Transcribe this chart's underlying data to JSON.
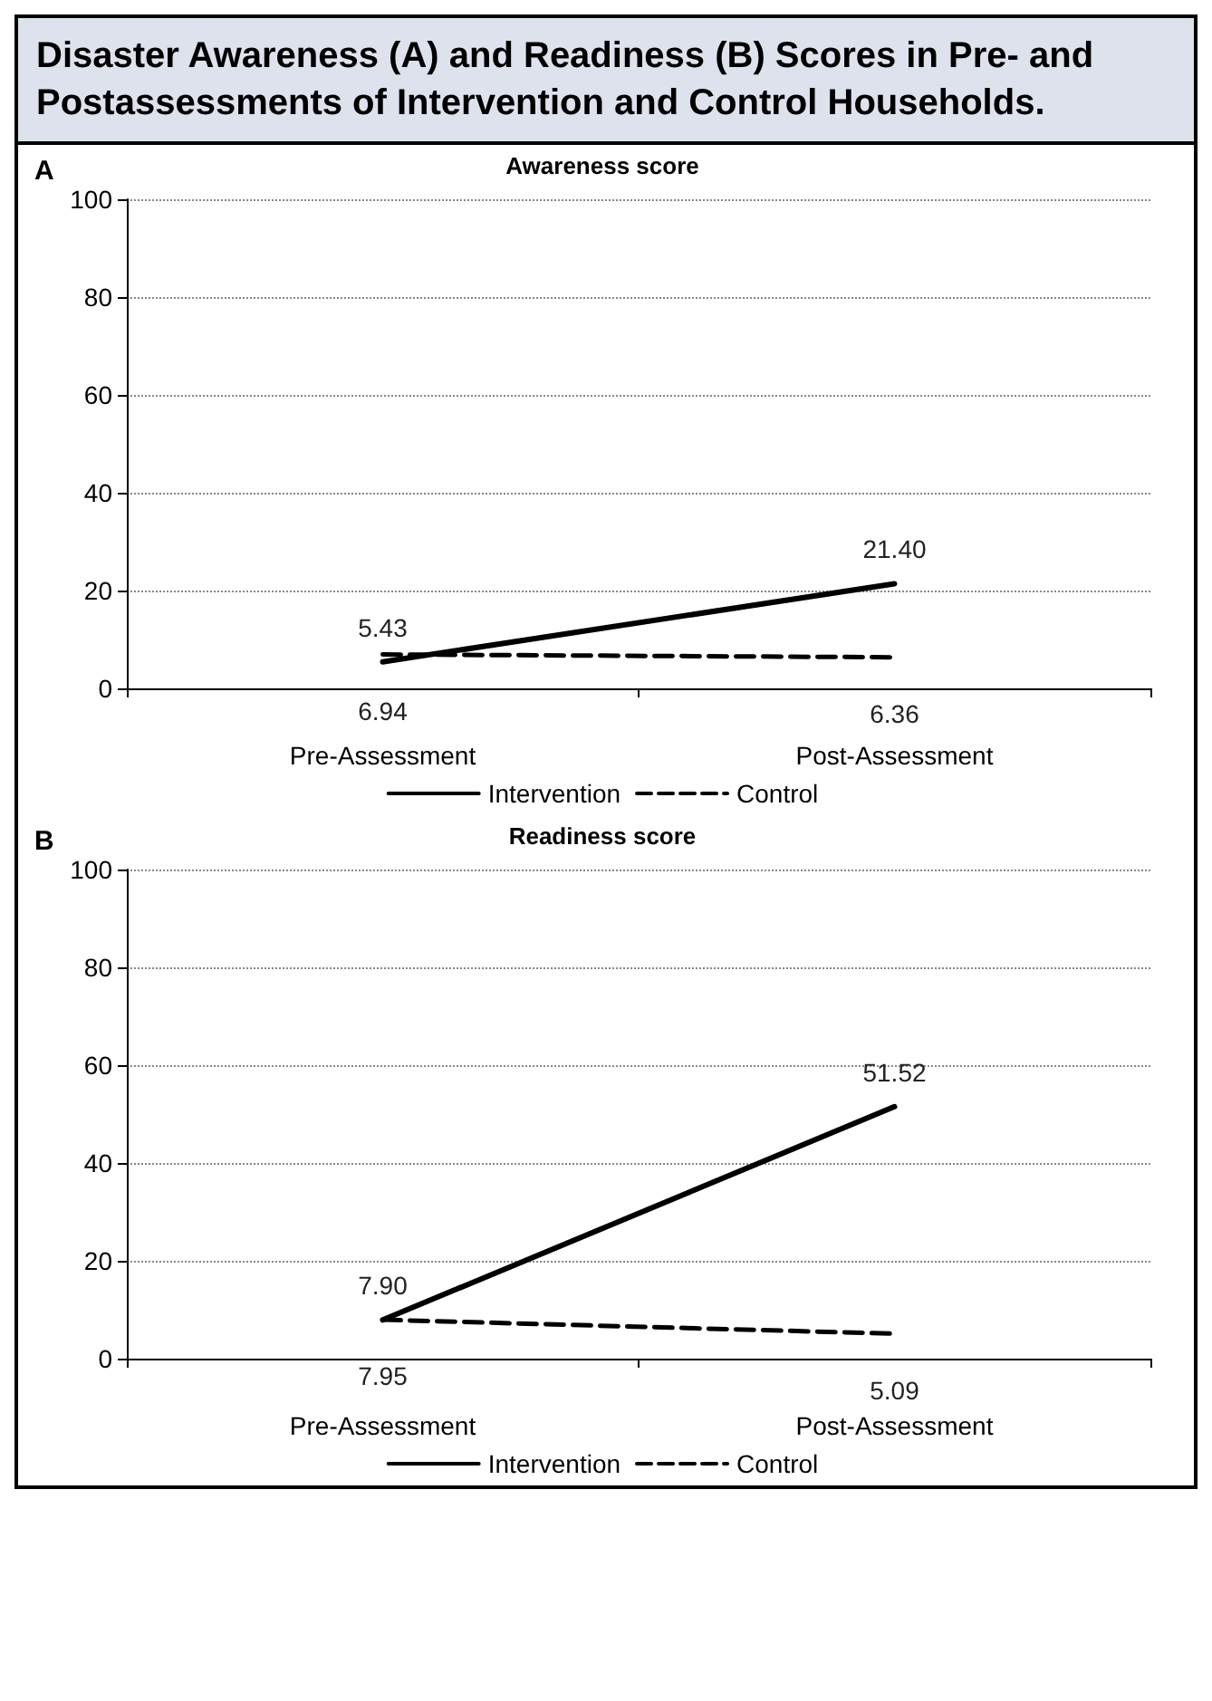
{
  "chart_data": [
    {
      "type": "line",
      "title": "Disaster Awareness (A) and Readiness (B) Scores in Pre- and Postassessments of Intervention and Control Households.",
      "subtitle": "Awareness score",
      "annotations": [
        "A"
      ],
      "categories": [
        "Pre-Assessment",
        "Post-Assessment"
      ],
      "series": [
        {
          "name": "Intervention",
          "color": "#000000",
          "values": [
            5.43,
            21.4
          ],
          "value_labels": [
            "5.43",
            "21.40"
          ],
          "line_style": "solid"
        },
        {
          "name": "Control",
          "color": "#000000",
          "values": [
            6.94,
            6.36
          ],
          "value_labels": [
            "6.94",
            "6.36"
          ],
          "line_style": "dashed"
        }
      ],
      "ylim": [
        0,
        100
      ],
      "yticks": [
        0,
        20,
        40,
        60,
        80,
        100
      ],
      "grid": "y",
      "legend": "bottom",
      "marker": "none"
    },
    {
      "type": "line",
      "title": "Readiness score",
      "annotations": [
        "B"
      ],
      "categories": [
        "Pre-Assessment",
        "Post-Assessment"
      ],
      "series": [
        {
          "name": "Intervention",
          "color": "#000000",
          "values": [
            7.9,
            51.52
          ],
          "value_labels": [
            "7.90",
            "51.52"
          ],
          "line_style": "solid"
        },
        {
          "name": "Control",
          "color": "#000000",
          "values": [
            7.95,
            5.09
          ],
          "value_labels": [
            "7.95",
            "5.09"
          ],
          "line_style": "dashed"
        }
      ],
      "ylim": [
        0,
        100
      ],
      "yticks": [
        0,
        20,
        40,
        60,
        80,
        100
      ],
      "grid": "y",
      "legend": "bottom",
      "marker": "none"
    }
  ]
}
